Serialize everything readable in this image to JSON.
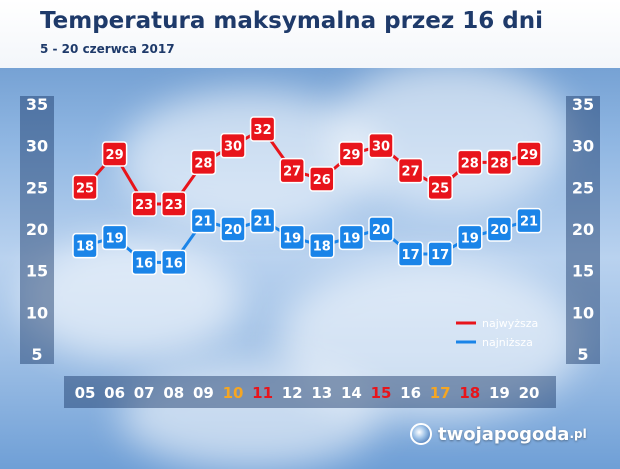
{
  "header": {
    "title": "Temperatura maksymalna przez 16 dni",
    "subtitle": "5 - 20 czerwca 2017"
  },
  "logo": {
    "name": "twojapogoda",
    "tld": ".pl"
  },
  "colors": {
    "max": "#e8141b",
    "min": "#1a84e8",
    "weekday": "#ffffff",
    "saturday": "#f5a623",
    "sunday": "#e8141b"
  },
  "chart_data": {
    "type": "line",
    "title": "Temperatura maksymalna przez 16 dni",
    "subtitle": "5 - 20 czerwca 2017",
    "categories": [
      "05",
      "06",
      "07",
      "08",
      "09",
      "10",
      "11",
      "12",
      "13",
      "14",
      "15",
      "16",
      "17",
      "18",
      "19",
      "20"
    ],
    "category_types": [
      "weekday",
      "weekday",
      "weekday",
      "weekday",
      "weekday",
      "saturday",
      "sunday",
      "weekday",
      "weekday",
      "weekday",
      "sunday",
      "weekday",
      "saturday",
      "sunday",
      "weekday",
      "weekday"
    ],
    "series": [
      {
        "name": "najwyższa",
        "color": "#e8141b",
        "values": [
          25,
          29,
          23,
          23,
          28,
          30,
          32,
          27,
          26,
          29,
          30,
          27,
          25,
          28,
          28,
          29
        ]
      },
      {
        "name": "najniższa",
        "color": "#1a84e8",
        "values": [
          18,
          19,
          16,
          16,
          21,
          20,
          21,
          19,
          18,
          19,
          20,
          17,
          17,
          19,
          20,
          21
        ]
      }
    ],
    "y_ticks": [
      "5",
      "10",
      "15",
      "20",
      "25",
      "30",
      "35"
    ],
    "ylim": [
      5,
      35
    ],
    "grid": false,
    "legend_position": "right"
  }
}
